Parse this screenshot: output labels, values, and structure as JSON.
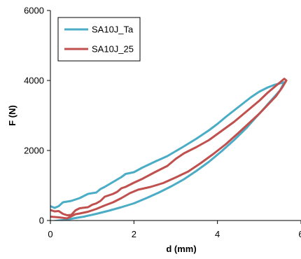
{
  "chart_data": {
    "type": "line",
    "title": "",
    "xlabel": "d (mm)",
    "ylabel": "F (N)",
    "xlim": [
      0,
      6
    ],
    "ylim": [
      0,
      6000
    ],
    "x_ticks": [
      "0",
      "2",
      "4",
      "6"
    ],
    "y_ticks": [
      "0",
      "2000",
      "4000",
      "6000"
    ],
    "grid": false,
    "legend_placement": "top-left",
    "series": [
      {
        "name": "SA10J_Ta",
        "color": "#4bacc6",
        "loading": [
          [
            0.0,
            410
          ],
          [
            0.1,
            360
          ],
          [
            0.2,
            410
          ],
          [
            0.3,
            520
          ],
          [
            0.5,
            560
          ],
          [
            0.7,
            640
          ],
          [
            0.9,
            760
          ],
          [
            1.1,
            800
          ],
          [
            1.2,
            900
          ],
          [
            1.3,
            960
          ],
          [
            1.5,
            1100
          ],
          [
            1.7,
            1240
          ],
          [
            1.8,
            1330
          ],
          [
            2.0,
            1380
          ],
          [
            2.2,
            1510
          ],
          [
            2.5,
            1680
          ],
          [
            2.8,
            1840
          ],
          [
            3.0,
            1980
          ],
          [
            3.2,
            2120
          ],
          [
            3.5,
            2340
          ],
          [
            3.8,
            2580
          ],
          [
            4.0,
            2760
          ],
          [
            4.2,
            2960
          ],
          [
            4.5,
            3240
          ],
          [
            4.8,
            3520
          ],
          [
            5.0,
            3680
          ],
          [
            5.2,
            3800
          ],
          [
            5.35,
            3870
          ],
          [
            5.5,
            3920
          ],
          [
            5.6,
            3950
          ]
        ],
        "unloading": [
          [
            5.6,
            3950
          ],
          [
            5.5,
            3720
          ],
          [
            5.3,
            3450
          ],
          [
            5.1,
            3180
          ],
          [
            4.9,
            2920
          ],
          [
            4.7,
            2650
          ],
          [
            4.4,
            2300
          ],
          [
            4.1,
            1980
          ],
          [
            3.8,
            1680
          ],
          [
            3.5,
            1420
          ],
          [
            3.2,
            1180
          ],
          [
            2.9,
            980
          ],
          [
            2.6,
            800
          ],
          [
            2.3,
            640
          ],
          [
            2.0,
            490
          ],
          [
            1.7,
            380
          ],
          [
            1.4,
            280
          ],
          [
            1.1,
            190
          ],
          [
            0.8,
            110
          ],
          [
            0.5,
            50
          ],
          [
            0.3,
            10
          ],
          [
            0.2,
            0
          ],
          [
            0.0,
            -30
          ]
        ]
      },
      {
        "name": "SA10J_25",
        "color": "#c0504d",
        "loading": [
          [
            0.0,
            300
          ],
          [
            0.1,
            260
          ],
          [
            0.2,
            270
          ],
          [
            0.3,
            190
          ],
          [
            0.4,
            150
          ],
          [
            0.5,
            160
          ],
          [
            0.6,
            290
          ],
          [
            0.7,
            350
          ],
          [
            0.9,
            380
          ],
          [
            1.0,
            450
          ],
          [
            1.1,
            490
          ],
          [
            1.2,
            560
          ],
          [
            1.3,
            680
          ],
          [
            1.5,
            760
          ],
          [
            1.6,
            820
          ],
          [
            1.7,
            920
          ],
          [
            1.8,
            960
          ],
          [
            2.0,
            1080
          ],
          [
            2.2,
            1190
          ],
          [
            2.5,
            1380
          ],
          [
            2.8,
            1560
          ],
          [
            3.0,
            1760
          ],
          [
            3.2,
            1920
          ],
          [
            3.5,
            2100
          ],
          [
            3.8,
            2300
          ],
          [
            4.1,
            2560
          ],
          [
            4.4,
            2820
          ],
          [
            4.7,
            3120
          ],
          [
            5.0,
            3420
          ],
          [
            5.2,
            3650
          ],
          [
            5.4,
            3850
          ],
          [
            5.5,
            3950
          ],
          [
            5.6,
            4050
          ],
          [
            5.65,
            4000
          ]
        ],
        "unloading": [
          [
            5.65,
            4000
          ],
          [
            5.55,
            3800
          ],
          [
            5.4,
            3550
          ],
          [
            5.2,
            3300
          ],
          [
            5.0,
            3050
          ],
          [
            4.8,
            2830
          ],
          [
            4.5,
            2500
          ],
          [
            4.2,
            2180
          ],
          [
            3.9,
            1900
          ],
          [
            3.6,
            1640
          ],
          [
            3.3,
            1400
          ],
          [
            3.0,
            1230
          ],
          [
            2.7,
            1070
          ],
          [
            2.4,
            960
          ],
          [
            2.1,
            880
          ],
          [
            1.9,
            780
          ],
          [
            1.7,
            640
          ],
          [
            1.5,
            520
          ],
          [
            1.3,
            430
          ],
          [
            1.1,
            330
          ],
          [
            0.9,
            250
          ],
          [
            0.7,
            200
          ],
          [
            0.6,
            180
          ],
          [
            0.5,
            120
          ],
          [
            0.4,
            60
          ],
          [
            0.2,
            90
          ],
          [
            0.0,
            110
          ]
        ]
      }
    ]
  }
}
